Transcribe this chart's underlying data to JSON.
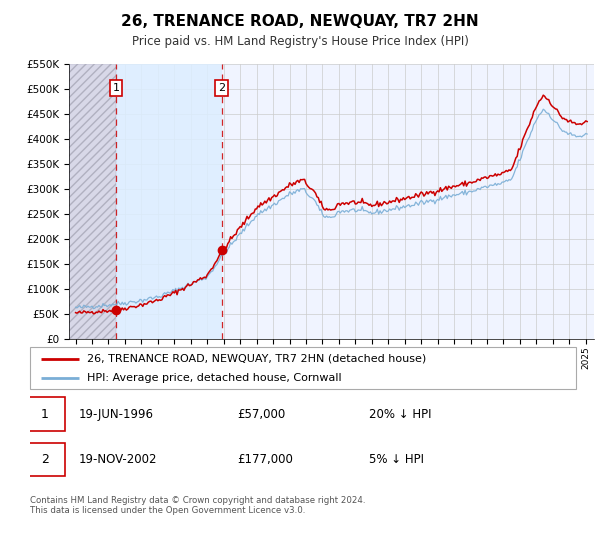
{
  "title": "26, TRENANCE ROAD, NEWQUAY, TR7 2HN",
  "subtitle": "Price paid vs. HM Land Registry's House Price Index (HPI)",
  "ylim": [
    0,
    550000
  ],
  "yticks": [
    0,
    50000,
    100000,
    150000,
    200000,
    250000,
    300000,
    350000,
    400000,
    450000,
    500000,
    550000
  ],
  "ytick_labels": [
    "£0",
    "£50K",
    "£100K",
    "£150K",
    "£200K",
    "£250K",
    "£300K",
    "£350K",
    "£400K",
    "£450K",
    "£500K",
    "£550K"
  ],
  "xlim_start": 1993.6,
  "xlim_end": 2025.5,
  "purchase1_date": 1996.46,
  "purchase1_price": 57000,
  "purchase2_date": 2002.88,
  "purchase2_price": 177000,
  "red_line_color": "#cc0000",
  "blue_line_color": "#7aaed6",
  "grid_color": "#cccccc",
  "plot_bg_color": "#f0f4ff",
  "shaded_between_color": "#ddeeff",
  "hatch_color": "#c8c8d8",
  "legend_label_red": "26, TRENANCE ROAD, NEWQUAY, TR7 2HN (detached house)",
  "legend_label_blue": "HPI: Average price, detached house, Cornwall",
  "annotation1_date": "19-JUN-1996",
  "annotation1_price": "£57,000",
  "annotation1_hpi": "20% ↓ HPI",
  "annotation2_date": "19-NOV-2002",
  "annotation2_price": "£177,000",
  "annotation2_hpi": "5% ↓ HPI",
  "footnote": "Contains HM Land Registry data © Crown copyright and database right 2024.\nThis data is licensed under the Open Government Licence v3.0."
}
